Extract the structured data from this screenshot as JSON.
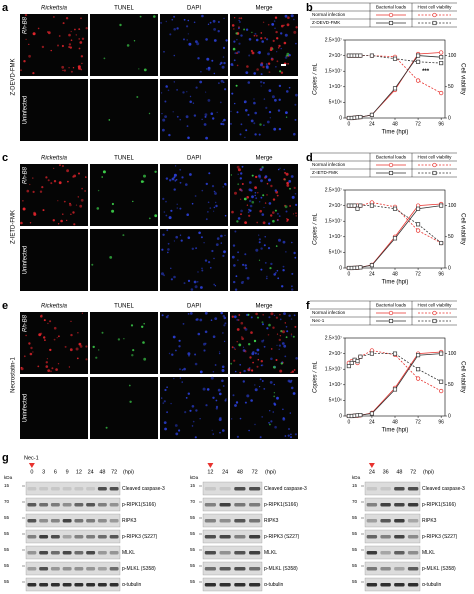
{
  "microscopy": [
    {
      "letter": "a",
      "treatment": "Z-DEVD-FMK",
      "columns": [
        "Rickettsia",
        "TUNEL",
        "DAPI",
        "Merge"
      ],
      "rows": [
        "Rh-B8",
        "Uninfected"
      ]
    },
    {
      "letter": "c",
      "treatment": "Z-IETD-FMK",
      "columns": [
        "Rickettsia",
        "TUNEL",
        "DAPI",
        "Merge"
      ],
      "rows": [
        "Rh-B8",
        "Uninfected"
      ]
    },
    {
      "letter": "e",
      "treatment": "Necrostatin-1",
      "columns": [
        "Rickettsia",
        "TUNEL",
        "DAPI",
        "Merge"
      ],
      "rows": [
        "Rh-B8",
        "Uninfected"
      ]
    }
  ],
  "chart_data": [
    {
      "type": "line",
      "letter": "b",
      "legend_headers": [
        "Bacterial loads",
        "Host cell viability"
      ],
      "x_label": "Time (hpi)",
      "y_label": "Copies / mL",
      "y2_label": "Cell viability",
      "x": [
        0,
        3,
        6,
        9,
        12,
        24,
        48,
        72,
        96
      ],
      "xlim": [
        -4,
        100
      ],
      "xticks": [
        0,
        24,
        48,
        72,
        96
      ],
      "ylim": [
        0,
        25000000
      ],
      "yticks": [
        0,
        {
          "value": 5000000,
          "label": "5×10⁶"
        },
        {
          "value": 10000000,
          "label": "1×10⁷"
        },
        {
          "value": 15000000,
          "label": "1.5×10⁷"
        },
        {
          "value": 20000000,
          "label": "2×10⁷"
        },
        {
          "value": 25000000,
          "label": "2.5×10⁷"
        }
      ],
      "y2lim": [
        0,
        125
      ],
      "y2ticks": [
        0,
        50,
        100
      ],
      "annotations": [
        "***"
      ],
      "series": [
        {
          "name": "Normal infection",
          "color": "#e8322e",
          "values": [
            0,
            0,
            100000,
            200000,
            300000,
            1000000,
            9000000,
            20500000,
            21000000
          ],
          "y2_values": [
            100,
            100,
            100,
            100,
            100,
            100,
            98,
            60,
            40
          ]
        },
        {
          "name": "Z-DEVD-FMK",
          "color": "#333333",
          "values": [
            0,
            0,
            100000,
            200000,
            300000,
            1000000,
            9500000,
            20000000,
            19500000
          ],
          "y2_values": [
            100,
            100,
            100,
            100,
            100,
            100,
            95,
            90,
            88
          ]
        }
      ]
    },
    {
      "type": "line",
      "letter": "d",
      "legend_headers": [
        "Bacterial loads",
        "Host cell viability"
      ],
      "x_label": "Time (hpi)",
      "y_label": "Copies / mL",
      "y2_label": "Cell viability",
      "x": [
        0,
        3,
        6,
        9,
        12,
        24,
        48,
        72,
        96
      ],
      "xlim": [
        -4,
        100
      ],
      "xticks": [
        0,
        24,
        48,
        72,
        96
      ],
      "ylim": [
        0,
        25000000
      ],
      "yticks": [
        0,
        {
          "value": 5000000,
          "label": "5×10⁶"
        },
        {
          "value": 10000000,
          "label": "1×10⁷"
        },
        {
          "value": 15000000,
          "label": "1.5×10⁷"
        },
        {
          "value": 20000000,
          "label": "2×10⁷"
        },
        {
          "value": 25000000,
          "label": "2.5×10⁷"
        }
      ],
      "y2lim": [
        0,
        125
      ],
      "y2ticks": [
        0,
        50,
        100
      ],
      "series": [
        {
          "name": "Normal infection",
          "color": "#e8322e",
          "values": [
            0,
            0,
            50000,
            100000,
            200000,
            1000000,
            10000000,
            20000000,
            20500000
          ],
          "y2_values": [
            100,
            100,
            100,
            100,
            100,
            105,
            98,
            60,
            40
          ]
        },
        {
          "name": "Z-IETD-FMK",
          "color": "#333333",
          "values": [
            0,
            0,
            50000,
            100000,
            200000,
            900000,
            9500000,
            19000000,
            20000000
          ],
          "y2_values": [
            100,
            100,
            100,
            95,
            100,
            100,
            95,
            70,
            40
          ]
        }
      ]
    },
    {
      "type": "line",
      "letter": "f",
      "legend_headers": [
        "Bacterial loads",
        "Host cell viability"
      ],
      "x_label": "Time (hpi)",
      "y_label": "Copies / mL",
      "y2_label": "Cell viability",
      "x": [
        0,
        3,
        6,
        9,
        12,
        24,
        48,
        72,
        96
      ],
      "xlim": [
        -4,
        100
      ],
      "xticks": [
        0,
        24,
        48,
        72,
        96
      ],
      "ylim": [
        0,
        25000000
      ],
      "yticks": [
        0,
        {
          "value": 5000000,
          "label": "5×10⁶"
        },
        {
          "value": 10000000,
          "label": "1×10⁷"
        },
        {
          "value": 15000000,
          "label": "1.5×10⁷"
        },
        {
          "value": 20000000,
          "label": "2×10⁷"
        },
        {
          "value": 25000000,
          "label": "2.5×10⁷"
        }
      ],
      "y2lim": [
        0,
        125
      ],
      "y2ticks": [
        0,
        50,
        100
      ],
      "series": [
        {
          "name": "Normal infection",
          "color": "#e8322e",
          "values": [
            0,
            0,
            100000,
            100000,
            200000,
            1000000,
            9000000,
            20000000,
            20500000
          ],
          "y2_values": [
            85,
            88,
            90,
            85,
            95,
            105,
            98,
            60,
            40
          ]
        },
        {
          "name": "Nec-1",
          "color": "#333333",
          "values": [
            0,
            0,
            100000,
            200000,
            300000,
            800000,
            8500000,
            19500000,
            20000000
          ],
          "y2_values": [
            80,
            85,
            90,
            88,
            95,
            100,
            100,
            75,
            55
          ]
        }
      ]
    }
  ],
  "blot": {
    "letter": "g",
    "inhibitor": "Nec-1",
    "unit": "(hpi)",
    "kda": "kDa",
    "labels": [
      "Cleaved caspase-3",
      "p-RIPK1(S166)",
      "RIPK3",
      "p-RIPK3 (S227)",
      "MLKL",
      "p-MLKL (S358)",
      "α-tubulin"
    ],
    "markers": [
      15,
      70,
      55,
      55,
      55,
      55,
      55
    ],
    "lanes": [
      [
        0,
        3,
        6,
        9,
        12,
        24,
        48,
        72
      ],
      [
        12,
        24,
        48,
        72
      ],
      [
        24,
        36,
        48,
        72
      ]
    ]
  }
}
